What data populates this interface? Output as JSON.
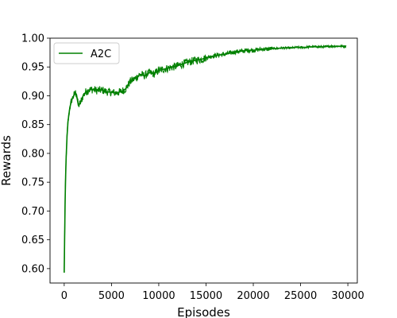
{
  "chart_data": {
    "type": "line",
    "title": "",
    "xlabel": "Episodes",
    "ylabel": "Rewards",
    "xlim": [
      -1500,
      31000
    ],
    "ylim": [
      0.575,
      1.0
    ],
    "x_ticks": [
      0,
      5000,
      10000,
      15000,
      20000,
      25000,
      30000
    ],
    "x_tick_labels": [
      "0",
      "5000",
      "10000",
      "15000",
      "20000",
      "25000",
      "30000"
    ],
    "y_ticks": [
      0.6,
      0.65,
      0.7,
      0.75,
      0.8,
      0.85,
      0.9,
      0.95,
      1.0
    ],
    "y_tick_labels": [
      "0.60",
      "0.65",
      "0.70",
      "0.75",
      "0.80",
      "0.85",
      "0.90",
      "0.95",
      "1.00"
    ],
    "grid": false,
    "legend_position": "top-left",
    "series": [
      {
        "name": "A2C",
        "color": "#008000",
        "x": [
          0,
          50,
          100,
          150,
          200,
          300,
          400,
          500,
          600,
          800,
          1000,
          1200,
          1300,
          1500,
          1700,
          2000,
          2300,
          2600,
          3000,
          3500,
          4000,
          4500,
          5000,
          5500,
          6000,
          6500,
          7000,
          7500,
          8000,
          8500,
          9000,
          9500,
          10000,
          10500,
          11000,
          11500,
          12000,
          12500,
          13000,
          13500,
          14000,
          14500,
          15000,
          15500,
          16000,
          16500,
          17000,
          17500,
          18000,
          18500,
          19000,
          19500,
          20000,
          20500,
          21000,
          21500,
          22000,
          22500,
          23000,
          23500,
          24000,
          24500,
          25000,
          25500,
          26000,
          26500,
          27000,
          27500,
          28000,
          28500,
          29000,
          29500,
          29800
        ],
        "y": [
          0.593,
          0.66,
          0.72,
          0.76,
          0.79,
          0.83,
          0.855,
          0.868,
          0.88,
          0.893,
          0.9,
          0.905,
          0.902,
          0.883,
          0.887,
          0.9,
          0.907,
          0.91,
          0.911,
          0.909,
          0.91,
          0.907,
          0.906,
          0.905,
          0.907,
          0.912,
          0.925,
          0.93,
          0.937,
          0.935,
          0.94,
          0.938,
          0.944,
          0.946,
          0.948,
          0.95,
          0.952,
          0.955,
          0.958,
          0.96,
          0.962,
          0.963,
          0.966,
          0.968,
          0.97,
          0.971,
          0.972,
          0.974,
          0.976,
          0.977,
          0.978,
          0.979,
          0.979,
          0.98,
          0.981,
          0.981,
          0.982,
          0.982,
          0.983,
          0.983,
          0.983,
          0.984,
          0.984,
          0.984,
          0.985,
          0.985,
          0.985,
          0.985,
          0.986,
          0.986,
          0.986,
          0.986,
          0.986
        ]
      }
    ]
  }
}
